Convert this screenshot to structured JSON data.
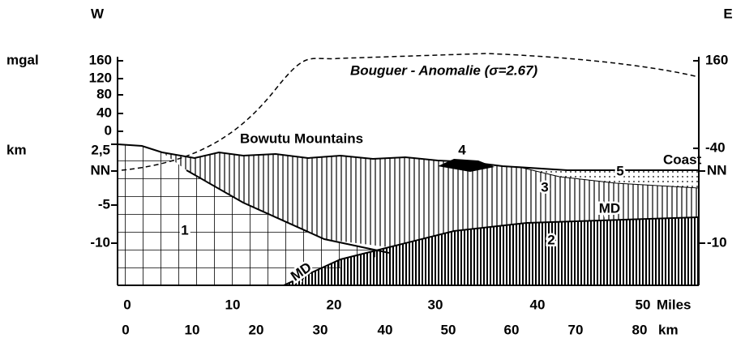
{
  "header": {
    "west": "W",
    "east": "E"
  },
  "gravity_axis": {
    "unit": "mgal",
    "left_ticks": [
      "160",
      "120",
      "80",
      "40",
      "0"
    ],
    "right_ticks": [
      "160",
      "-40"
    ]
  },
  "depth_axis": {
    "unit": "km",
    "left_ticks": [
      "2,5",
      "NN",
      "-5",
      "-10"
    ],
    "right_ticks": [
      "NN",
      "-10"
    ]
  },
  "distance_axis": {
    "miles_ticks": [
      "0",
      "10",
      "20",
      "30",
      "40",
      "50"
    ],
    "miles_unit": "Miles",
    "km_ticks": [
      "0",
      "10",
      "20",
      "30",
      "40",
      "50",
      "60",
      "70",
      "80"
    ],
    "km_unit": "km"
  },
  "annotations": {
    "bouguer": "Bouguer - Anomalie (σ=2.67)",
    "mountains": "Bowutu Mountains",
    "coast": "Coast"
  },
  "units": [
    "1",
    "2",
    "3",
    "4",
    "5"
  ],
  "discontinuity": [
    "MD",
    "MD"
  ]
}
